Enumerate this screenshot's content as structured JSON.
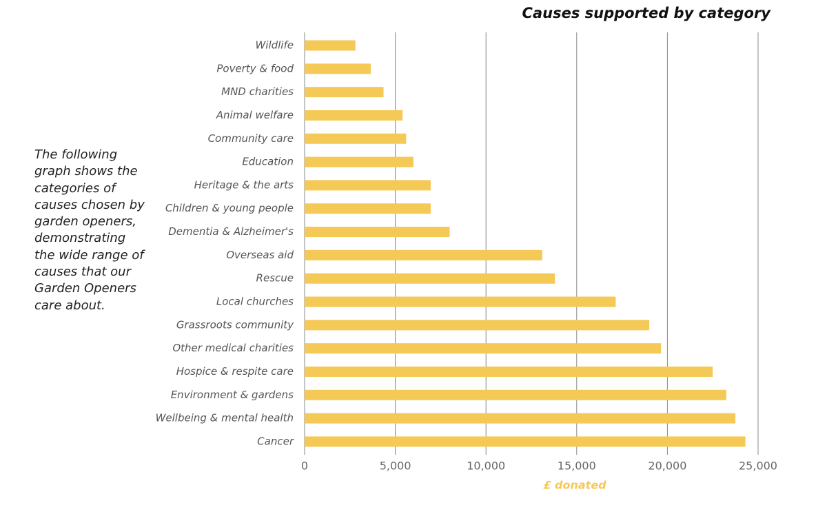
{
  "chart_data": {
    "type": "bar",
    "orientation": "horizontal",
    "title": "Causes supported by category",
    "annotation": "The following graph shows the categories of causes chosen by garden openers, demonstrating the wide range of causes that our Garden Openers care about.",
    "x_label": "£ donated",
    "categories": [
      "Wildlife",
      "Poverty & food",
      "MND charities",
      "Animal welfare",
      "Community care",
      "Education",
      "Heritage & the arts",
      "Children & young people",
      "Dementia & Alzheimer's",
      "Overseas aid",
      "Rescue",
      "Local churches",
      "Grassroots community",
      "Other medical charities",
      "Hospice & respite care",
      "Environment & gardens",
      "Wellbeing & mental health",
      "Cancer"
    ],
    "values": [
      2800,
      3650,
      4350,
      5400,
      5600,
      6000,
      6950,
      6950,
      8000,
      13100,
      13800,
      17150,
      19000,
      19650,
      22500,
      23250,
      23750,
      24300
    ],
    "color": "#f5c955",
    "xlim": [
      0,
      25000
    ],
    "xticks": [
      0,
      {
        "value": 5000,
        "label": "5,000"
      },
      {
        "value": 10000,
        "label": "10,000"
      },
      {
        "value": 15000,
        "label": "15,000"
      },
      {
        "value": 20000,
        "label": "20,000"
      },
      {
        "value": 25000,
        "label": "25,000"
      }
    ],
    "grid": true
  }
}
